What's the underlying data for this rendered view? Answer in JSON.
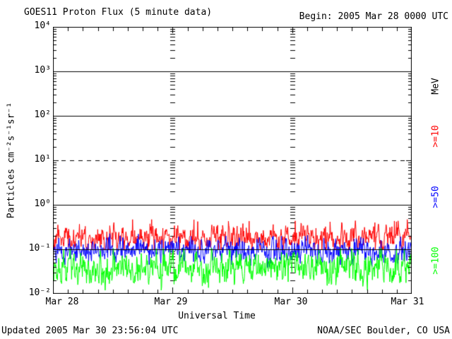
{
  "header": {
    "title": "GOES11 Proton Flux (5 minute data)",
    "begin": "Begin: 2005 Mar 28 0000 UTC"
  },
  "footer": {
    "updated": "Updated 2005 Mar 30 23:56:04 UTC",
    "source": "NOAA/SEC Boulder, CO USA"
  },
  "chart_data": {
    "type": "line",
    "title": "GOES11 Proton Flux (5 minute data)",
    "xlabel": "Universal Time",
    "ylabel": "Particles cm⁻²s⁻¹sr⁻¹",
    "right_axis_unit": "MeV",
    "y_scale": "log",
    "ylim": [
      0.01,
      10000
    ],
    "ylim_log10": [
      -2,
      4
    ],
    "y_ticks": [
      "10⁴",
      "10³",
      "10²",
      "10¹",
      "10⁰",
      "10⁻¹",
      "10⁻²"
    ],
    "x_ticks": [
      "Mar 28",
      "Mar 29",
      "Mar 30",
      "Mar 31"
    ],
    "x_span_hours": 72,
    "x_minor_tick_hours": 3,
    "sample_interval_minutes": 5,
    "background": "#ffffff",
    "axis_color": "#000000",
    "gridlines": [
      {
        "log10": 3,
        "value": 1000,
        "style": "solid"
      },
      {
        "log10": 2,
        "value": 100,
        "style": "solid"
      },
      {
        "log10": 1,
        "value": 10,
        "style": "dashed"
      },
      {
        "log10": 0,
        "value": 1,
        "style": "solid"
      },
      {
        "log10": -1,
        "value": 0.1,
        "style": "solid"
      }
    ],
    "day_boundary_minor_tick_columns": [
      "Mar 29",
      "Mar 30"
    ],
    "series": [
      {
        "name": ">=10",
        "unit": "MeV",
        "color": "#ff0000",
        "description": "quiet-time noise band ~0.09-0.5 particles, mean ~0.18",
        "log10_mean": -0.74,
        "log10_std": 0.125,
        "log10_min": -1.0,
        "log10_max": -0.33,
        "spike_prob": 0.05,
        "spike_amp": 0.22,
        "seed": 101
      },
      {
        "name": ">=50",
        "unit": "MeV",
        "color": "#0000ff",
        "description": "quiet-time noise band ~0.04-0.22 particles, mean ~0.09",
        "log10_mean": -1.04,
        "log10_std": 0.125,
        "log10_min": -1.42,
        "log10_max": -0.63,
        "spike_prob": 0.03,
        "spike_amp": 0.18,
        "seed": 202
      },
      {
        "name": ">=100",
        "unit": "MeV",
        "color": "#00ff00",
        "description": "quiet-time noise band ~0.012-0.1 particles, mean ~0.035",
        "log10_mean": -1.42,
        "log10_std": 0.165,
        "log10_min": -1.92,
        "log10_max": -0.98,
        "spike_prob": 0.03,
        "spike_amp": 0.15,
        "seed": 303
      }
    ]
  }
}
